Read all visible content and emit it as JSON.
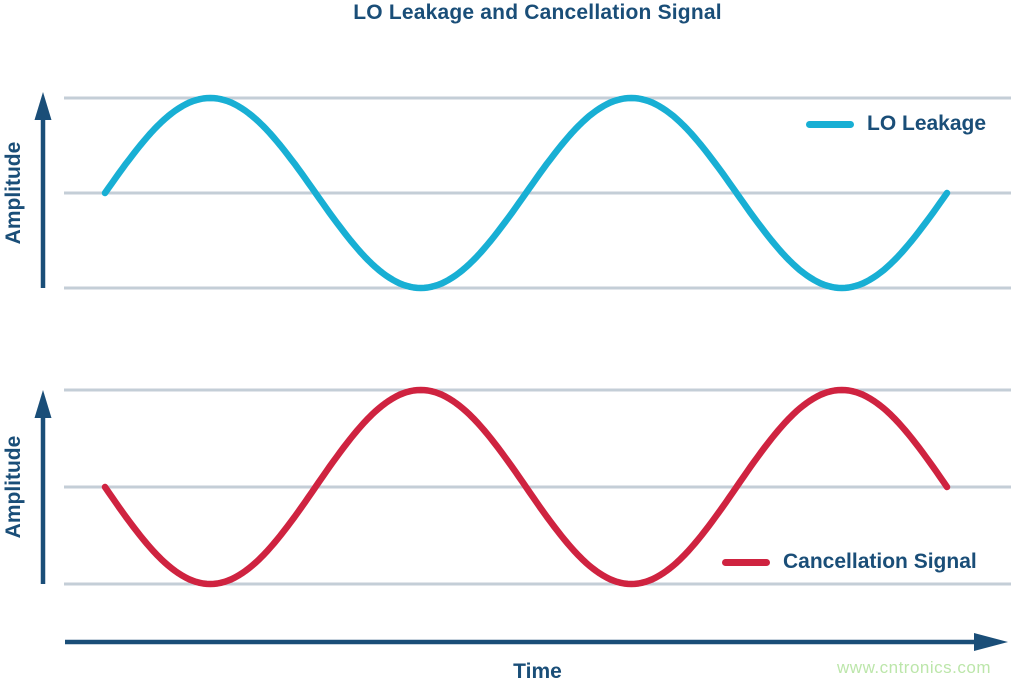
{
  "title": "LO Leakage and Cancellation Signal",
  "xlabel": "Time",
  "watermark": "www.cntronics.com",
  "colors": {
    "navy": "#1A4E78",
    "gridline": "#C4CED7",
    "watermark_green": "#BCE6AA"
  },
  "charts": [
    {
      "ylabel": "Amplitude",
      "legend": "LO Leakage"
    },
    {
      "ylabel": "Amplitude",
      "legend": "Cancellation Signal"
    }
  ],
  "chart_data": {
    "type": "line",
    "title": "LO Leakage and Cancellation Signal",
    "xlabel": "Time",
    "ylabel": "Amplitude",
    "x_range": [
      0,
      2
    ],
    "x_unit": "periods (no numeric ticks shown)",
    "ylim": [
      -1,
      1
    ],
    "grid": "3 horizontal gridlines per subplot at y = +1, 0, -1",
    "layout": "two stacked subplots sharing one time axis with arrowed axes",
    "legend_position": "inside right of each subplot",
    "series": [
      {
        "name": "LO Leakage",
        "subplot": "top",
        "waveform": "sine",
        "amplitude": 1,
        "cycles": 2,
        "phase_deg": 0,
        "color": "#18AFD4",
        "keypoints_x_periods": [
          0,
          0.25,
          0.5,
          0.75,
          1,
          1.25,
          1.5,
          1.75,
          2
        ],
        "keypoints_y": [
          0,
          1,
          0,
          -1,
          0,
          1,
          0,
          -1,
          0
        ]
      },
      {
        "name": "Cancellation Signal",
        "subplot": "bottom",
        "waveform": "sine",
        "amplitude": 1,
        "cycles": 2,
        "phase_deg": 180,
        "color": "#CF2340",
        "keypoints_x_periods": [
          0,
          0.25,
          0.5,
          0.75,
          1,
          1.25,
          1.5,
          1.75,
          2
        ],
        "keypoints_y": [
          0,
          -1,
          0,
          1,
          0,
          -1,
          0,
          1,
          0
        ]
      }
    ]
  }
}
